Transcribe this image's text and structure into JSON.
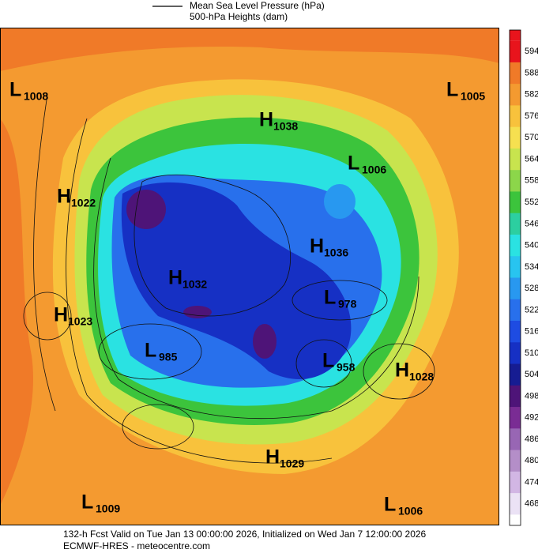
{
  "header": {
    "legend_line_label": "Mean Sea Level Pressure (hPa)",
    "subtitle": "500-hPa Heights (dam)"
  },
  "colorbar": {
    "levels": [
      594,
      588,
      582,
      576,
      570,
      564,
      558,
      552,
      546,
      540,
      534,
      528,
      522,
      516,
      510,
      504,
      498,
      492,
      486,
      480,
      474,
      468
    ],
    "colors": [
      "#e8141c",
      "#f07a28",
      "#f49a30",
      "#f8c23c",
      "#f6e050",
      "#c8e44e",
      "#8cd64a",
      "#3cc43c",
      "#2ccfa0",
      "#2ae2e2",
      "#28c4f0",
      "#2898f0",
      "#2870ec",
      "#1e4ce2",
      "#1630c4",
      "#161c92",
      "#4e1478",
      "#7a2c94",
      "#9866b4",
      "#b48ec8",
      "#d2b6e4",
      "#ebe2f5"
    ]
  },
  "centers": [
    {
      "type": "L",
      "value": 1008
    },
    {
      "type": "H",
      "value": 1038
    },
    {
      "type": "L",
      "value": 1005
    },
    {
      "type": "L",
      "value": 1006
    },
    {
      "type": "H",
      "value": 1022
    },
    {
      "type": "H",
      "value": 1036
    },
    {
      "type": "H",
      "value": 1032
    },
    {
      "type": "L",
      "value": 978
    },
    {
      "type": "H",
      "value": 1023
    },
    {
      "type": "L",
      "value": 985
    },
    {
      "type": "L",
      "value": 958
    },
    {
      "type": "H",
      "value": 1028
    },
    {
      "type": "H",
      "value": 1029
    },
    {
      "type": "L",
      "value": 1009
    },
    {
      "type": "L",
      "value": 1006
    }
  ],
  "footer": {
    "line1": "132-h Fcst Valid on Tue Jan 13 00:00:00 2026, Initialized on Wed Jan  7 12:00:00 2026",
    "line2": "ECMWF-HRES  - meteocentre.com"
  }
}
